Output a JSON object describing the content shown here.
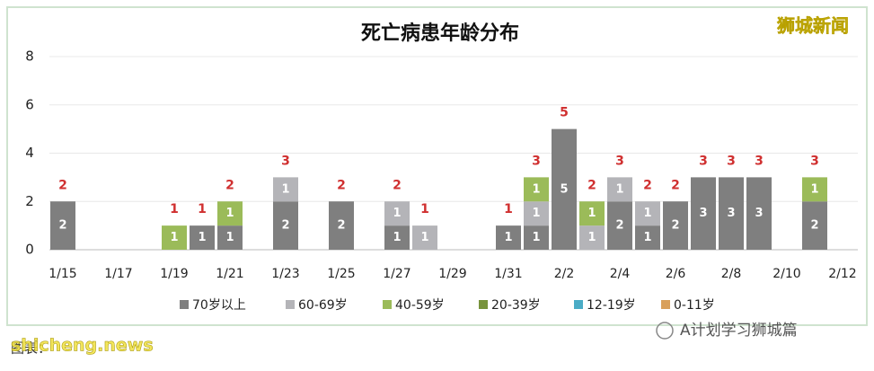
{
  "chart_data": {
    "type": "stacked_bar",
    "title": "死亡病患年龄分布",
    "categories": [
      "1/15",
      null,
      "1/17",
      null,
      "1/19",
      null,
      "1/21",
      null,
      "1/23",
      null,
      "1/25",
      null,
      "1/27",
      null,
      "1/29",
      null,
      "1/31",
      null,
      "2/2",
      null,
      "2/4",
      null,
      "2/6",
      null,
      "2/8",
      null,
      "2/10",
      null,
      "2/12"
    ],
    "series": [
      {
        "name": "70岁以上",
        "color": "#7f7f7f",
        "values": [
          2,
          0,
          0,
          0,
          0,
          1,
          1,
          0,
          2,
          0,
          2,
          0,
          1,
          0,
          0,
          0,
          1,
          1,
          5,
          0,
          2,
          1,
          2,
          3,
          3,
          3,
          0,
          2,
          0
        ]
      },
      {
        "name": "60-69岁",
        "color": "#b4b4b8",
        "values": [
          0,
          0,
          0,
          0,
          0,
          0,
          0,
          0,
          1,
          0,
          0,
          0,
          1,
          1,
          0,
          0,
          0,
          1,
          0,
          1,
          1,
          1,
          0,
          0,
          0,
          0,
          0,
          0,
          0
        ]
      },
      {
        "name": "40-59岁",
        "color": "#9bbb59",
        "values": [
          0,
          0,
          0,
          0,
          1,
          0,
          1,
          0,
          0,
          0,
          0,
          0,
          0,
          0,
          0,
          0,
          0,
          1,
          0,
          1,
          0,
          0,
          0,
          0,
          0,
          0,
          0,
          1,
          0
        ]
      },
      {
        "name": "20-39岁",
        "color": "#77933c",
        "values": [
          0,
          0,
          0,
          0,
          0,
          0,
          0,
          0,
          0,
          0,
          0,
          0,
          0,
          0,
          0,
          0,
          0,
          0,
          0,
          0,
          0,
          0,
          0,
          0,
          0,
          0,
          0,
          0,
          0
        ]
      },
      {
        "name": "12-19岁",
        "color": "#4bacc6",
        "values": [
          0,
          0,
          0,
          0,
          0,
          0,
          0,
          0,
          0,
          0,
          0,
          0,
          0,
          0,
          0,
          0,
          0,
          0,
          0,
          0,
          0,
          0,
          0,
          0,
          0,
          0,
          0,
          0,
          0
        ]
      },
      {
        "name": "0-11岁",
        "color": "#d9a05b",
        "values": [
          0,
          0,
          0,
          0,
          0,
          0,
          0,
          0,
          0,
          0,
          0,
          0,
          0,
          0,
          0,
          0,
          0,
          0,
          0,
          0,
          0,
          0,
          0,
          0,
          0,
          0,
          0,
          0,
          0
        ]
      }
    ],
    "totals": [
      2,
      null,
      null,
      null,
      1,
      1,
      2,
      null,
      3,
      null,
      2,
      null,
      2,
      1,
      null,
      null,
      1,
      3,
      5,
      2,
      3,
      2,
      2,
      3,
      3,
      3,
      null,
      3,
      null
    ],
    "ylim": [
      0,
      8
    ],
    "yticks": [
      0,
      2,
      4,
      6,
      8
    ],
    "grid": true
  },
  "watermark": "狮城新闻",
  "source": "图表：",
  "site": "shicheng.news",
  "account": "A计划学习狮城篇"
}
